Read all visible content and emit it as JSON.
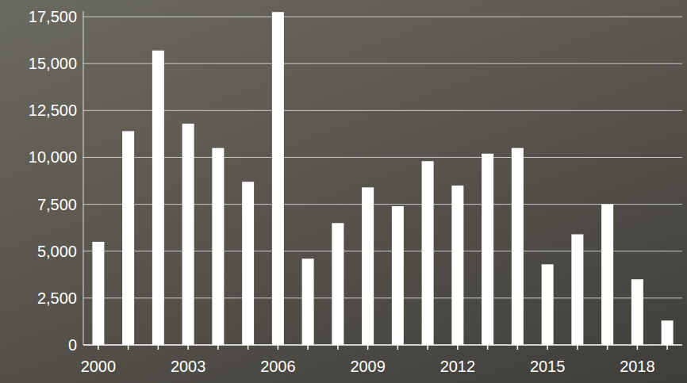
{
  "chart_data": {
    "type": "bar",
    "categories": [
      "2000",
      null,
      null,
      "2003",
      null,
      null,
      "2006",
      null,
      null,
      "2009",
      null,
      null,
      "2012",
      null,
      null,
      "2015",
      null,
      null,
      "2018",
      null
    ],
    "values": [
      5500,
      11400,
      15700,
      11800,
      10500,
      8700,
      17750,
      4600,
      6500,
      8400,
      7400,
      9800,
      8500,
      10200,
      10500,
      4300,
      5900,
      7500,
      3500,
      1300
    ],
    "color": "#ffffff",
    "ylim": [
      0,
      17800
    ],
    "yticks": [
      0,
      {
        "value": 2500,
        "label": "2,500"
      },
      {
        "value": 5000,
        "label": "5,000"
      },
      {
        "value": 7500,
        "label": "7,500"
      },
      {
        "value": 10000,
        "label": "10,000"
      },
      {
        "value": 12500,
        "label": "12,500"
      },
      {
        "value": 15000,
        "label": "15,000"
      },
      {
        "value": 17500,
        "label": "17,500"
      }
    ],
    "grid": true
  }
}
